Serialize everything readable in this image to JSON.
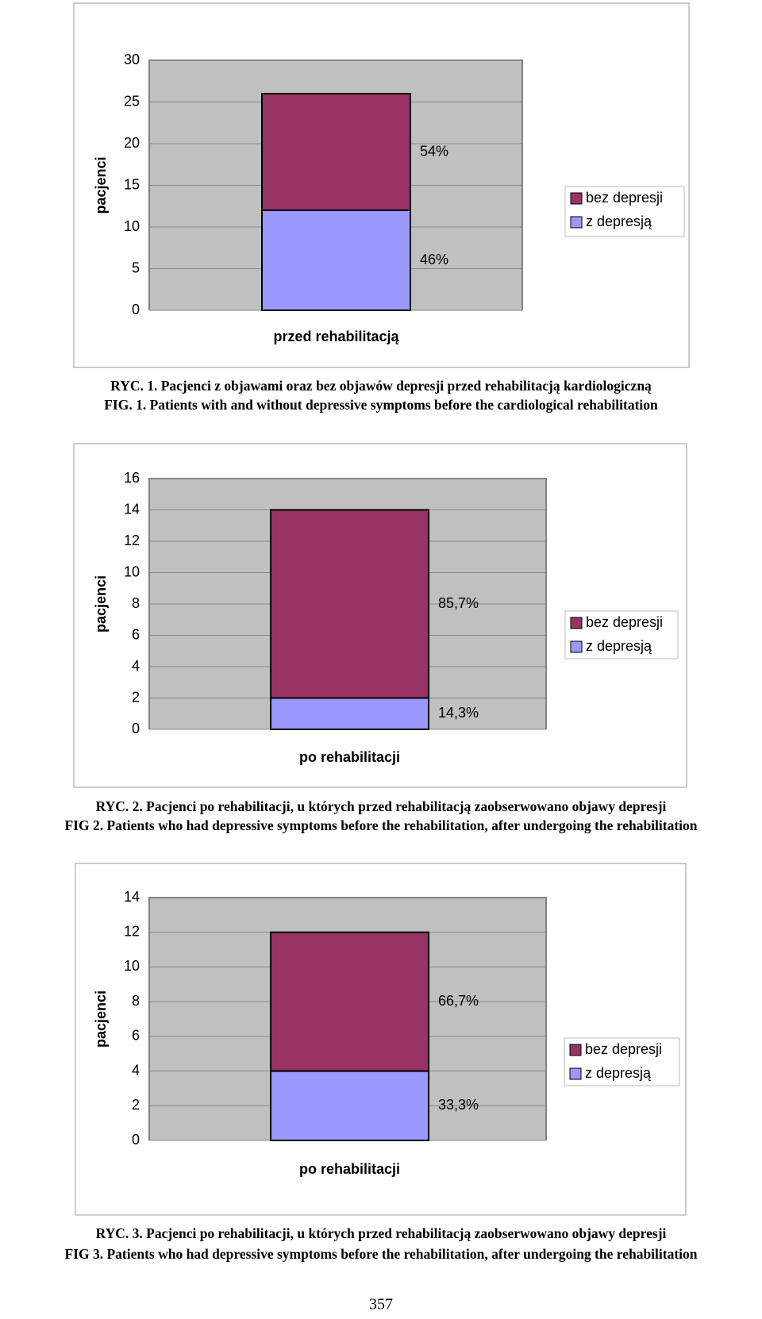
{
  "chart_data": [
    {
      "type": "bar",
      "stacked": true,
      "ylabel": "pacjenci",
      "categories": [
        "przed rehabilitacją"
      ],
      "series": [
        {
          "name": "z depresją",
          "color": "#9999ff",
          "values": [
            12
          ],
          "label": "46%"
        },
        {
          "name": "bez depresji",
          "color": "#993366",
          "values": [
            14
          ],
          "label": "54%"
        }
      ],
      "ylim": [
        0,
        30
      ],
      "yticks": [
        0,
        5,
        10,
        15,
        20,
        25,
        30
      ],
      "grid": true,
      "legend": "right",
      "captions": [
        "RYC. 1. Pacjenci z objawami oraz bez objawów depresji przed rehabilitacją kardiologiczną",
        "FIG. 1. Patients with and without depressive symptoms before the cardiological rehabilitation"
      ]
    },
    {
      "type": "bar",
      "stacked": true,
      "ylabel": "pacjenci",
      "categories": [
        "po rehabilitacji"
      ],
      "series": [
        {
          "name": "z depresją",
          "color": "#9999ff",
          "values": [
            2
          ],
          "label": "14,3%"
        },
        {
          "name": "bez depresji",
          "color": "#993366",
          "values": [
            12
          ],
          "label": "85,7%"
        }
      ],
      "ylim": [
        0,
        16
      ],
      "yticks": [
        0,
        2,
        4,
        6,
        8,
        10,
        12,
        14,
        16
      ],
      "grid": true,
      "legend": "right",
      "captions": [
        "RYC. 2. Pacjenci po rehabilitacji, u których przed rehabilitacją zaobserwowano objawy depresji",
        "FIG 2. Patients who had depressive symptoms before the rehabilitation, after undergoing the rehabilitation"
      ]
    },
    {
      "type": "bar",
      "stacked": true,
      "ylabel": "pacjenci",
      "categories": [
        "po rehabilitacji"
      ],
      "series": [
        {
          "name": "z depresją",
          "color": "#9999ff",
          "values": [
            4
          ],
          "label": "33,3%"
        },
        {
          "name": "bez depresji",
          "color": "#993366",
          "values": [
            8
          ],
          "label": "66,7%"
        }
      ],
      "ylim": [
        0,
        14
      ],
      "yticks": [
        0,
        2,
        4,
        6,
        8,
        10,
        12,
        14
      ],
      "grid": true,
      "legend": "right",
      "captions": [
        "RYC. 3. Pacjenci po rehabilitacji, u których przed rehabilitacją zaobserwowano objawy depresji",
        "FIG 3. Patients who had depressive symptoms before the rehabilitation, after undergoing the rehabilitation"
      ]
    }
  ],
  "page_number": "357"
}
